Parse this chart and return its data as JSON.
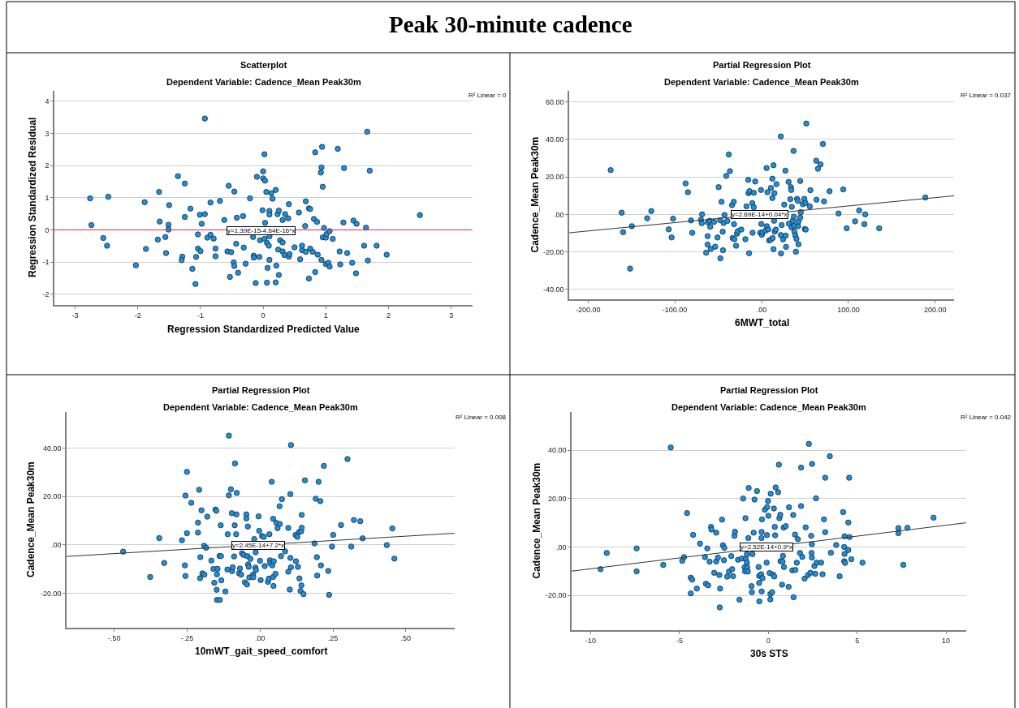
{
  "chart_data": [
    {
      "type": "other",
      "title": "Peak 30-minute cadence"
    },
    {
      "type": "scatter",
      "title": "Scatterplot",
      "subtitle": "Dependent Variable: Cadence_Mean Peak30m",
      "xlabel": "Regression Standardized Predicted Value",
      "ylabel": "Regression Standardized Residual",
      "xlim": [
        -3.33,
        3.34
      ],
      "ylim": [
        -2.33,
        4.32
      ],
      "xticks": [
        -3,
        -2,
        -1,
        0,
        1,
        2,
        3
      ],
      "yticks": [
        -2,
        -1,
        0,
        1,
        2,
        3,
        4
      ],
      "grid": "y",
      "marker": "circle",
      "annotations": [
        "R² Linear = 0",
        {
          "text": "y=1.39E-15-4.64E-16*x",
          "x": -0.58,
          "y": -0.02
        }
      ],
      "series": [
        {
          "color": "#1f8fd8",
          "x": [
            -2.76,
            -2.74,
            -2.47,
            -2.55,
            -2.49,
            -2.03,
            -1.89,
            -1.87,
            -1.66,
            -1.65,
            -1.68,
            -1.56,
            -1.55,
            -1.51,
            -1.51,
            -1.5,
            -1.36,
            -1.25,
            -1.25,
            -1.29,
            -1.3,
            -1.16,
            -1.13,
            -1.08,
            -1.07,
            -1.01,
            -1.04,
            -1.04,
            -1.0,
            -0.98,
            -0.93,
            -0.93,
            -0.89,
            -0.84,
            -0.84,
            -0.79,
            -0.76,
            -0.76,
            -0.69,
            -0.62,
            -0.57,
            -0.55,
            -0.53,
            -0.51,
            -0.46,
            -0.47,
            -0.46,
            -0.43,
            -0.42,
            -0.4,
            -0.32,
            -0.31,
            -0.28,
            -0.21,
            -0.16,
            -0.15,
            -0.15,
            -0.12,
            -0.1,
            -0.06,
            -0.05,
            -0.01,
            0.0,
            0.0,
            0.02,
            0.03,
            0.03,
            0.02,
            0.05,
            0.06,
            0.06,
            0.07,
            0.09,
            0.1,
            0.1,
            0.1,
            0.1,
            0.13,
            0.15,
            0.2,
            0.2,
            0.21,
            0.23,
            0.24,
            0.25,
            0.25,
            0.27,
            0.31,
            0.31,
            0.31,
            0.34,
            0.35,
            0.4,
            0.41,
            0.41,
            0.42,
            0.5,
            0.57,
            0.59,
            0.62,
            0.62,
            0.67,
            0.68,
            0.68,
            0.73,
            0.75,
            0.73,
            0.75,
            0.79,
            0.81,
            0.83,
            0.83,
            0.86,
            0.87,
            0.92,
            0.93,
            0.94,
            0.95,
            0.93,
            0.95,
            0.97,
            1.0,
            1.01,
            1.0,
            1.04,
            1.06,
            1.06,
            1.11,
            1.19,
            1.22,
            1.23,
            1.29,
            1.28,
            1.34,
            1.42,
            1.44,
            1.49,
            1.48,
            1.61,
            1.64,
            1.66,
            1.67,
            1.7,
            1.81,
            1.97,
            2.5
          ],
          "values": [
            0.98,
            0.15,
            1.03,
            -0.25,
            -0.49,
            -1.1,
            0.86,
            -0.59,
            1.18,
            0.26,
            -0.3,
            -0.22,
            -0.72,
            0.16,
            0.01,
            0.77,
            1.67,
            1.44,
            0.4,
            -0.83,
            -0.94,
            0.66,
            -1.21,
            -1.68,
            -0.84,
            0.47,
            -0.14,
            -0.58,
            -0.66,
            0.19,
            3.46,
            0.49,
            -0.24,
            0.85,
            -0.15,
            -0.27,
            -0.58,
            -0.82,
            0.9,
            0.31,
            -0.67,
            1.37,
            -1.46,
            -0.69,
            1.19,
            -1.01,
            -1.12,
            -0.43,
            0.38,
            -1.33,
            0.43,
            -0.55,
            -1.05,
            0.98,
            -0.22,
            -0.8,
            -0.86,
            -1.65,
            1.65,
            -0.84,
            -0.32,
            0.61,
            1.82,
            1.6,
            2.35,
            1.53,
            0.22,
            -0.28,
            1.18,
            -0.4,
            -1.64,
            -1.18,
            -0.49,
            0.59,
            0.48,
            -0.2,
            -0.93,
            1.14,
            0.97,
            1.24,
            -1.63,
            -1.11,
            0.49,
            -0.61,
            0.6,
            -1.4,
            -0.32,
            -0.39,
            0.31,
            -0.67,
            -0.78,
            0.49,
            0.36,
            0.8,
            -0.83,
            -0.75,
            -0.54,
            0.54,
            -0.91,
            -0.63,
            -0.49,
            0.12,
            0.89,
            -0.68,
            0.67,
            0.65,
            -1.51,
            -0.58,
            -0.68,
            0.34,
            2.41,
            -1.31,
            0.25,
            -0.77,
            1.78,
            1.94,
            2.58,
            1.34,
            -0.93,
            -0.23,
            0.06,
            -0.24,
            -0.13,
            -1.06,
            -1.02,
            -0.04,
            -1.14,
            -0.28,
            2.52,
            -0.67,
            -1.07,
            1.92,
            0.23,
            -0.72,
            -1.02,
            0.29,
            0.19,
            -1.35,
            -0.49,
            0.07,
            3.05,
            -0.95,
            1.84,
            -0.49,
            -0.77,
            0.46
          ]
        },
        {
          "type": "line",
          "marker": "none",
          "color": "#e0284f",
          "x": [
            -3.33,
            3.34
          ],
          "values": [
            0,
            0
          ]
        }
      ]
    },
    {
      "type": "scatter",
      "title": "Partial Regression Plot",
      "subtitle": "Dependent Variable: Cadence_Mean Peak30m",
      "xlabel": "6MWT_total",
      "ylabel": "Cadence_Mean Peak30m",
      "xlim": [
        -221.7,
        221.7
      ],
      "ylim": [
        -45.2,
        65.8
      ],
      "xticks": [
        {
          "value": -200,
          "label": "-200.00"
        },
        {
          "value": -100,
          "label": "-100.00"
        },
        {
          "value": 0,
          "label": ".00"
        },
        {
          "value": 100,
          "label": "100.00"
        },
        {
          "value": 200,
          "label": "200.00"
        }
      ],
      "yticks": [
        {
          "value": -40,
          "label": "-40.00"
        },
        {
          "value": -20,
          "label": "-20.00"
        },
        {
          "value": 0,
          "label": ".00"
        },
        {
          "value": 20,
          "label": "20.00"
        },
        {
          "value": 40,
          "label": "40.00"
        },
        {
          "value": 60,
          "label": "60.00"
        }
      ],
      "grid": "y",
      "marker": "circle",
      "annotations": [
        "R² Linear = 0.037",
        {
          "text": "y=2.69E-14+0.04*x",
          "x": -35.1,
          "y": 0.1
        }
      ],
      "series": [
        {
          "color": "#1f8fd8",
          "x": [
            -173.9,
            -161.2,
            -159.5,
            -149.5,
            -151.5,
            -131.8,
            -127.1,
            -107.0,
            -103.7,
            -102.0,
            -87.6,
            -84.9,
            -81.3,
            -79.9,
            -69.9,
            -68.9,
            -68.6,
            -63.9,
            -62.2,
            -62.2,
            -61.9,
            -59.9,
            -59.2,
            -58.5,
            -54.8,
            -53.5,
            -50.8,
            -49.5,
            -47.8,
            -47.5,
            -46.2,
            -44.8,
            -44.5,
            -43.8,
            -42.8,
            -40.8,
            -39.5,
            -37.8,
            -36.5,
            -34.1,
            -33.4,
            -32.1,
            -31.8,
            -31.4,
            -29.4,
            -28.4,
            -27.4,
            -23.4,
            -18.7,
            -17.4,
            -15.4,
            -15.1,
            -14.0,
            -14.4,
            -10.7,
            -10.4,
            -9.0,
            -9.0,
            -7.4,
            -1.7,
            -0.7,
            -0.3,
            0.3,
            1.0,
            4.3,
            5.7,
            6.0,
            6.7,
            7.7,
            8.7,
            10.4,
            10.7,
            12.4,
            12.4,
            12.7,
            13.7,
            13.7,
            14.4,
            14.7,
            15.1,
            16.4,
            17.1,
            22.1,
            22.1,
            22.4,
            23.1,
            24.7,
            26.1,
            27.4,
            27.8,
            28.1,
            31.1,
            31.4,
            33.1,
            33.8,
            34.1,
            34.4,
            34.8,
            35.8,
            36.8,
            37.1,
            37.5,
            37.8,
            38.8,
            39.5,
            40.1,
            40.8,
            41.8,
            42.1,
            42.5,
            42.5,
            44.5,
            44.5,
            45.2,
            47.5,
            49.2,
            49.8,
            50.8,
            50.5,
            51.5,
            55.5,
            56.2,
            62.9,
            63.2,
            64.9,
            67.9,
            70.6,
            71.9,
            78.3,
            88.6,
            94.0,
            98.0,
            107.7,
            112.4,
            118.4,
            119.4,
            135.5,
            188.6
          ],
          "values": [
            23.6,
            0.9,
            -9.5,
            -6.3,
            -28.9,
            -2.1,
            1.8,
            -8.0,
            -12.3,
            -2.3,
            16.5,
            11.8,
            -3.2,
            -9.8,
            -2.9,
            -4.7,
            0.0,
            -20.4,
            -11.6,
            -16.1,
            -4.3,
            -3.4,
            -6.6,
            -18.4,
            -4.0,
            -17.2,
            -12.3,
            14.5,
            -3.1,
            -23.4,
            6.7,
            -9.2,
            -19.1,
            -4.6,
            -0.3,
            20.5,
            -3.5,
            31.9,
            23.0,
            4.9,
            -12.6,
            6.7,
            -5.2,
            -13.2,
            -16.7,
            -10.3,
            -8.9,
            -8.1,
            -13.2,
            4.3,
            18.4,
            11.3,
            12.4,
            -20.7,
            6.0,
            -9.8,
            3.8,
            11.5,
            17.5,
            -9.8,
            13.0,
            -5.1,
            -10.9,
            -9.6,
            -8.7,
            24.7,
            -6.3,
            11.8,
            -8.0,
            -13.9,
            -13.5,
            14.1,
            8.7,
            19.0,
            -12.6,
            26.2,
            -18.5,
            -3.4,
            11.3,
            -9.2,
            -8.1,
            16.1,
            41.5,
            -11.0,
            -20.8,
            -5.7,
            -13.3,
            5.2,
            23.3,
            -11.3,
            -17.3,
            17.3,
            -4.9,
            8.1,
            14.5,
            13.0,
            -6.9,
            4.0,
            -3.4,
            33.8,
            -1.2,
            -6.1,
            -9.2,
            -11.2,
            -19.9,
            -13.0,
            8.3,
            7.2,
            -6.3,
            -3.8,
            -15.9,
            -1.7,
            17.8,
            1.2,
            5.4,
            8.3,
            -7.8,
            -8.1,
            6.1,
            48.4,
            4.3,
            12.9,
            28.6,
            7.8,
            24.3,
            26.6,
            37.5,
            6.9,
            12.3,
            0.5,
            13.3,
            -7.4,
            -3.7,
            2.1,
            -5.2,
            0.0,
            -7.4,
            9.0
          ]
        },
        {
          "type": "line",
          "marker": "none",
          "color": "#333333",
          "x": [
            -221.7,
            221.7
          ],
          "values": [
            -9.8,
            9.9
          ]
        }
      ]
    },
    {
      "type": "scatter",
      "title": "Partial Regression Plot",
      "subtitle": "Dependent Variable: Cadence_Mean Peak30m",
      "xlabel": "10mWT_gait_speed_comfort",
      "ylabel": "Cadence_Mean Peak30m",
      "xlim": [
        -0.664,
        0.668
      ],
      "ylim": [
        -34.3,
        55
      ],
      "xticks": [
        {
          "value": -0.5,
          "label": "-.50"
        },
        {
          "value": -0.25,
          "label": "-.25"
        },
        {
          "value": 0,
          "label": ".00"
        },
        {
          "value": 0.25,
          "label": ".25"
        },
        {
          "value": 0.5,
          "label": ".50"
        }
      ],
      "yticks": [
        {
          "value": -20,
          "label": "-20.00"
        },
        {
          "value": 0,
          "label": ".00"
        },
        {
          "value": 20,
          "label": "20.00"
        },
        {
          "value": 40,
          "label": "40.00"
        }
      ],
      "grid": "y",
      "marker": "circle",
      "annotations": [
        "R² Linear = 0.008",
        {
          "text": "y=2.45E-14+7.2*x",
          "x": -0.097,
          "y": -0.2
        }
      ],
      "series": [
        {
          "color": "#1f8fd8",
          "x": [
            -0.47,
            -0.377,
            -0.346,
            -0.329,
            -0.268,
            -0.258,
            -0.256,
            -0.256,
            -0.251,
            -0.251,
            -0.236,
            -0.213,
            -0.213,
            -0.209,
            -0.205,
            -0.206,
            -0.201,
            -0.198,
            -0.192,
            -0.191,
            -0.185,
            -0.181,
            -0.167,
            -0.16,
            -0.157,
            -0.153,
            -0.15,
            -0.149,
            -0.148,
            -0.146,
            -0.148,
            -0.138,
            -0.139,
            -0.135,
            -0.133,
            -0.134,
            -0.119,
            -0.112,
            -0.111,
            -0.107,
            -0.107,
            -0.1,
            -0.097,
            -0.096,
            -0.094,
            -0.089,
            -0.087,
            -0.086,
            -0.082,
            -0.08,
            -0.081,
            -0.072,
            -0.069,
            -0.065,
            -0.062,
            -0.056,
            -0.052,
            -0.047,
            -0.047,
            -0.045,
            -0.043,
            -0.042,
            -0.041,
            -0.039,
            -0.037,
            -0.033,
            -0.024,
            -0.023,
            -0.02,
            -0.016,
            -0.015,
            -0.014,
            -0.005,
            -0.003,
            0.0,
            0.002,
            0.007,
            0.013,
            0.016,
            0.027,
            0.03,
            0.032,
            0.034,
            0.035,
            0.04,
            0.042,
            0.045,
            0.045,
            0.046,
            0.047,
            0.053,
            0.056,
            0.06,
            0.067,
            0.068,
            0.072,
            0.075,
            0.086,
            0.097,
            0.097,
            0.102,
            0.104,
            0.106,
            0.104,
            0.106,
            0.122,
            0.123,
            0.128,
            0.13,
            0.134,
            0.135,
            0.139,
            0.141,
            0.142,
            0.143,
            0.143,
            0.149,
            0.154,
            0.187,
            0.191,
            0.195,
            0.196,
            0.201,
            0.207,
            0.209,
            0.219,
            0.234,
            0.237,
            0.247,
            0.251,
            0.278,
            0.3,
            0.313,
            0.322,
            0.344,
            0.352,
            0.435,
            0.454,
            0.461
          ],
          "values": [
            -2.8,
            -13.3,
            2.8,
            -7.5,
            1.9,
            -8.5,
            20.4,
            -12.9,
            4.8,
            30.2,
            17.4,
            5.1,
            9.2,
            22.8,
            -5.1,
            -13.8,
            14.3,
            -11.8,
            -0.4,
            -12.3,
            -1.2,
            11.7,
            -6.5,
            -10.0,
            -15.7,
            14.6,
            14.1,
            -18.6,
            -12.2,
            -9.9,
            -22.8,
            -22.8,
            -4.6,
            8.1,
            -14.7,
            -4.7,
            -19.3,
            -10.2,
            4.4,
            45.2,
            20.5,
            23.0,
            13.1,
            -10.9,
            -9.3,
            -4.8,
            8.1,
            33.7,
            4.4,
            21.5,
            12.6,
            -11.8,
            -9.8,
            -12.3,
            -3.5,
            -4.2,
            -15.5,
            12.6,
            10.9,
            -16.4,
            -4.7,
            7.6,
            -8.1,
            -9.1,
            -13.5,
            -5.8,
            -12.3,
            -13.4,
            2.4,
            -9.4,
            -3.1,
            -10.4,
            11.8,
            5.8,
            -6.6,
            -14.6,
            3.6,
            3.3,
            -8.8,
            -15.3,
            -14.0,
            4.4,
            -6.4,
            -7.6,
            26.1,
            -8.5,
            10.8,
            -13.3,
            -17.0,
            -6.8,
            -12.0,
            9.1,
            6.9,
            16.0,
            8.6,
            -4.7,
            18.9,
            -2.7,
            7.0,
            -11.1,
            -18.5,
            21.0,
            41.3,
            -5.4,
            -9.3,
            4.1,
            -6.8,
            3.3,
            -9.1,
            5.3,
            -13.9,
            -19.1,
            5.6,
            -16.8,
            12.4,
            7.1,
            -20.4,
            26.7,
            0.6,
            19.1,
            -5.1,
            -12.7,
            26.1,
            18.1,
            -8.5,
            32.7,
            -10.8,
            -20.7,
            -0.7,
            4.1,
            8.2,
            35.5,
            -0.7,
            10.3,
            9.8,
            2.7,
            -0.1,
            6.8,
            -5.7
          ]
        },
        {
          "type": "line",
          "marker": "none",
          "color": "#333333",
          "x": [
            -0.664,
            0.668
          ],
          "values": [
            -4.8,
            4.8
          ]
        }
      ]
    },
    {
      "type": "scatter",
      "title": "Partial Regression Plot",
      "subtitle": "Dependent Variable: Cadence_Mean Peak30m",
      "xlabel": "30s STS",
      "ylabel": "Cadence_Mean Peak30m",
      "xlim": [
        -11.08,
        11.14
      ],
      "ylim": [
        -34.4,
        55.8
      ],
      "xticks": [
        -10,
        -5,
        0,
        5,
        10
      ],
      "yticks": [
        {
          "value": -20,
          "label": "-20.00"
        },
        {
          "value": 0,
          "label": ".00"
        },
        {
          "value": 20,
          "label": "20.00"
        },
        {
          "value": 40,
          "label": "40.00"
        }
      ],
      "grid": "y",
      "marker": "circle",
      "annotations": [
        "R² Linear = 0.042",
        {
          "text": "y=2.52E-14+0.9*x",
          "x": -1.62,
          "y": -0.1
        }
      ],
      "series": [
        {
          "color": "#1f8fd8",
          "x": [
            -9.45,
            -9.1,
            -7.42,
            -7.42,
            -5.92,
            -5.5,
            -4.85,
            -4.75,
            -4.58,
            -4.37,
            -4.29,
            -4.37,
            -4.24,
            -4.03,
            -3.85,
            -3.57,
            -3.52,
            -3.44,
            -3.39,
            -3.31,
            -3.23,
            -3.21,
            -3.05,
            -2.94,
            -2.94,
            -2.84,
            -2.76,
            -2.72,
            -2.74,
            -2.61,
            -2.56,
            -2.48,
            -2.5,
            -2.32,
            -2.22,
            -2.09,
            -2.04,
            -1.99,
            -1.91,
            -1.88,
            -1.71,
            -1.63,
            -1.5,
            -1.42,
            -1.34,
            -1.31,
            -1.29,
            -1.27,
            -1.21,
            -1.21,
            -1.19,
            -1.16,
            -1.11,
            -1.13,
            -0.95,
            -0.93,
            -0.9,
            -0.83,
            -0.78,
            -0.64,
            -0.55,
            -0.52,
            -0.52,
            -0.51,
            -0.41,
            -0.39,
            -0.38,
            -0.36,
            -0.38,
            -0.33,
            -0.2,
            -0.1,
            -0.08,
            -0.07,
            -0.02,
            0.0,
            0.07,
            0.11,
            0.13,
            0.11,
            0.21,
            0.26,
            0.31,
            0.33,
            0.36,
            0.38,
            0.41,
            0.55,
            0.59,
            0.62,
            0.67,
            0.68,
            0.77,
            0.8,
            0.82,
            0.86,
            0.88,
            0.98,
            1.14,
            1.16,
            1.35,
            1.4,
            1.42,
            1.5,
            1.52,
            1.6,
            1.66,
            1.78,
            1.84,
            1.84,
            1.91,
            2.04,
            2.1,
            2.23,
            2.28,
            2.37,
            2.41,
            2.43,
            2.45,
            2.45,
            2.46,
            2.59,
            2.64,
            2.68,
            2.72,
            2.97,
            3.05,
            3.13,
            3.2,
            3.2,
            3.46,
            3.52,
            3.82,
            4.01,
            4.21,
            4.27,
            4.29,
            4.29,
            4.27,
            4.32,
            4.5,
            4.5,
            4.55,
            4.57,
            4.67,
            5.3,
            7.32,
            7.32,
            7.6,
            7.83,
            9.3
          ],
          "values": [
            -9.2,
            -2.5,
            -0.6,
            -10.1,
            -7.4,
            41.1,
            -5.7,
            -4.2,
            14.0,
            -12.7,
            -13.5,
            -19.2,
            5.0,
            -17.2,
            1.4,
            -4.2,
            -15.2,
            -0.6,
            -15.9,
            -6.1,
            8.3,
            7.2,
            -10.7,
            5.9,
            -6.0,
            -4.4,
            -11.6,
            -17.2,
            -25.0,
            11.3,
            0.7,
            -0.4,
            -5.5,
            -12.3,
            -10.2,
            -3.8,
            -9.2,
            -12.1,
            4.6,
            6.3,
            -5.3,
            -21.8,
            -4.8,
            20.0,
            -8.4,
            -10.1,
            11.9,
            -4.9,
            -3.0,
            -6.5,
            -8.5,
            -10.2,
            24.4,
            3.7,
            -16.2,
            -18.7,
            -3.0,
            5.9,
            19.6,
            23.1,
            -8.3,
            -12.0,
            -14.9,
            -22.5,
            -11.3,
            3.7,
            6.2,
            11.4,
            -18.4,
            -12.9,
            15.4,
            -6.5,
            4.9,
            16.5,
            19.0,
            12.9,
            -10.8,
            -19.5,
            22.0,
            -21.7,
            -18.7,
            -11.4,
            15.9,
            -12.2,
            8.3,
            4.8,
            24.6,
            22.6,
            34.0,
            11.9,
            13.3,
            -5.9,
            -15.6,
            -6.1,
            -3.7,
            8.0,
            -8.3,
            8.6,
            -16.5,
            16.4,
            -9.7,
            13.2,
            -20.8,
            5.1,
            -9.5,
            -6.5,
            3.2,
            -2.5,
            16.9,
            32.8,
            -4.1,
            -13.1,
            8.1,
            -11.6,
            42.6,
            -10.7,
            4.6,
            -2.5,
            1.1,
            -4.4,
            34.3,
            -7.9,
            -11.1,
            20.1,
            -6.5,
            -6.5,
            -11.3,
            11.4,
            6.1,
            28.6,
            37.5,
            -2.4,
            0.8,
            -12.1,
            14.4,
            0.0,
            4.4,
            -2.9,
            -5.9,
            -6.6,
            10.1,
            -1.3,
            28.6,
            4.1,
            -5.1,
            -6.5,
            7.8,
            5.7,
            -7.4,
            7.9,
            12.1
          ]
        },
        {
          "type": "line",
          "marker": "none",
          "color": "#333333",
          "x": [
            -11.08,
            11.14
          ],
          "values": [
            -10.0,
            10.0
          ]
        }
      ]
    }
  ]
}
